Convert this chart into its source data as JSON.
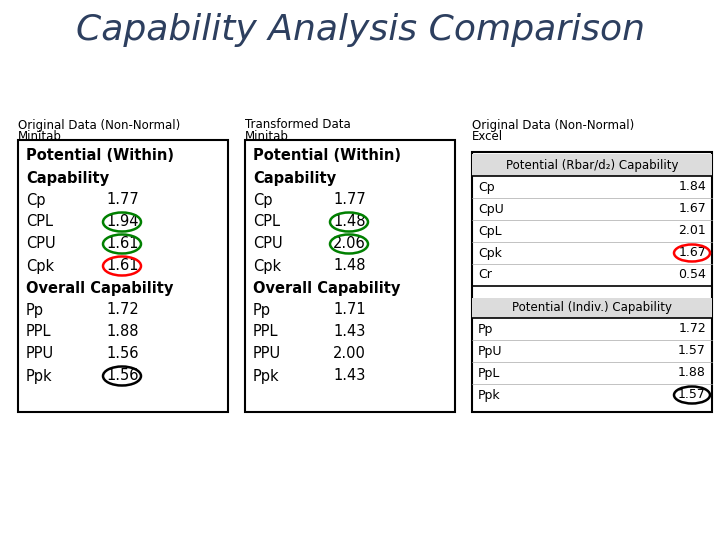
{
  "title": "Capability Analysis Comparison",
  "title_color": "#2D3F5F",
  "bg_color": "#FFFFFF",
  "col1_header1": "Original Data (Non-Normal)",
  "col1_header2": "Minitab",
  "col1_lines": [
    {
      "text": "Potential (Within)",
      "bold": true,
      "indent": 8
    },
    {
      "text": "Capability",
      "bold": true,
      "indent": 8
    },
    {
      "text": "Cp",
      "value": "1.77",
      "bold": false,
      "indent": 8
    },
    {
      "text": "CPL",
      "value": "1.94",
      "bold": false,
      "indent": 8,
      "circle": "green"
    },
    {
      "text": "CPU",
      "value": "1.61",
      "bold": false,
      "indent": 8,
      "circle": "green"
    },
    {
      "text": "Cpk",
      "value": "1.61",
      "bold": false,
      "indent": 8,
      "circle": "red"
    },
    {
      "text": "Overall Capability",
      "bold": true,
      "indent": 8
    },
    {
      "text": "Pp",
      "value": "1.72",
      "bold": false,
      "indent": 8
    },
    {
      "text": "PPL",
      "value": "1.88",
      "bold": false,
      "indent": 8
    },
    {
      "text": "PPU",
      "value": "1.56",
      "bold": false,
      "indent": 8
    },
    {
      "text": "Ppk",
      "value": "1.56",
      "bold": false,
      "indent": 8,
      "circle": "black"
    }
  ],
  "col2_header1": "Transformed Data",
  "col2_header2": "Minitab",
  "col2_lines": [
    {
      "text": "Potential (Within)",
      "bold": true,
      "indent": 8
    },
    {
      "text": "Capability",
      "bold": true,
      "indent": 8
    },
    {
      "text": "Cp",
      "value": "1.77",
      "bold": false,
      "indent": 8
    },
    {
      "text": "CPL",
      "value": "1.48",
      "bold": false,
      "indent": 8,
      "circle": "green"
    },
    {
      "text": "CPU",
      "value": "2.06",
      "bold": false,
      "indent": 8,
      "circle": "green"
    },
    {
      "text": "Cpk",
      "value": "1.48",
      "bold": false,
      "indent": 8
    },
    {
      "text": "Overall Capability",
      "bold": true,
      "indent": 8
    },
    {
      "text": "Pp",
      "value": "1.71",
      "bold": false,
      "indent": 8
    },
    {
      "text": "PPL",
      "value": "1.43",
      "bold": false,
      "indent": 8
    },
    {
      "text": "PPU",
      "value": "2.00",
      "bold": false,
      "indent": 8
    },
    {
      "text": "Ppk",
      "value": "1.43",
      "bold": false,
      "indent": 8
    }
  ],
  "col3_header1": "Original Data (Non-Normal)",
  "col3_header2": "Excel",
  "col3_top_header": "Potential (Rbar/d₂) Capability",
  "col3_top_rows": [
    {
      "label": "Cp",
      "value": "1.84"
    },
    {
      "label": "CpU",
      "value": "1.67"
    },
    {
      "label": "CpL",
      "value": "2.01"
    },
    {
      "label": "Cpk",
      "value": "1.67",
      "circle": "red"
    },
    {
      "label": "Cr",
      "value": "0.54"
    }
  ],
  "col3_bottom_header": "Potential (Indiv.) Capability",
  "col3_bottom_rows": [
    {
      "label": "Pp",
      "value": "1.72"
    },
    {
      "label": "PpU",
      "value": "1.57"
    },
    {
      "label": "PpL",
      "value": "1.88"
    },
    {
      "label": "Ppk",
      "value": "1.57",
      "circle": "black"
    }
  ]
}
